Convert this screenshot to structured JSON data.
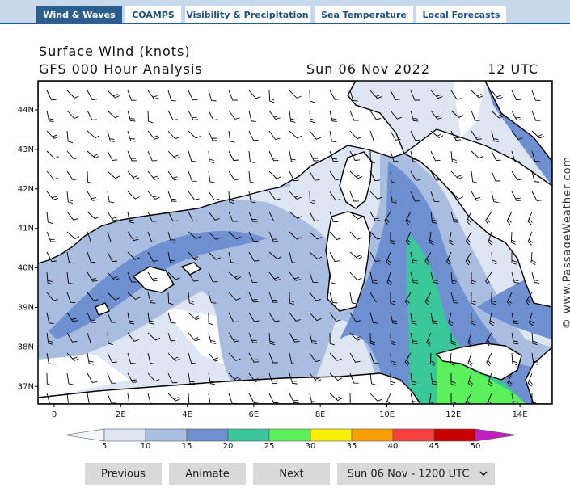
{
  "tabs": [
    "Wind & Waves",
    "COAMPS",
    "Visibility & Precipitation",
    "Sea Temperature",
    "Local Forecasts"
  ],
  "map": {
    "title": "Surface Wind (knots)",
    "subtitle": "GFS 000 Hour Analysis",
    "date": "Sun 06 Nov 2022",
    "time": "12 UTC",
    "lat_labels": [
      "44N",
      "43N",
      "42N",
      "41N",
      "40N",
      "39N",
      "38N",
      "37N"
    ],
    "lon_labels": [
      "0",
      "2E",
      "4E",
      "6E",
      "8E",
      "10E",
      "12E",
      "14E"
    ],
    "watermark": "© www.PassageWeather.com"
  },
  "colorbar": {
    "labels": [
      5,
      10,
      15,
      20,
      25,
      30,
      35,
      40,
      45,
      50
    ]
  },
  "controls": {
    "previous": "Previous",
    "animate": "Animate",
    "next": "Next",
    "select": "Sun 06 Nov - 1200 UTC"
  }
}
